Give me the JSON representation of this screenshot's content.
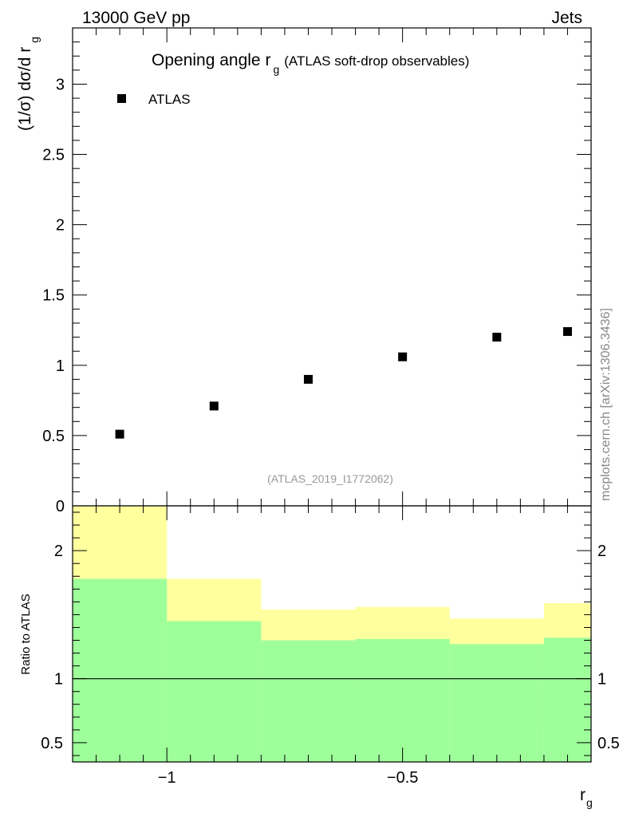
{
  "header": {
    "energy_label": "13000 GeV pp",
    "process_label": "Jets"
  },
  "watermark": "mcplots.cern.ch [arXiv:1306.3436]",
  "chart_data": [
    {
      "type": "scatter",
      "title_main": "Opening angle r",
      "title_sub": "g",
      "title_tail": "(ATLAS soft-drop observables)",
      "ylabel_main": "(1/σ) dσ/d r",
      "ylabel_sub": "g",
      "xlim": [
        -1.2,
        -0.1
      ],
      "ylim": [
        0,
        3.4
      ],
      "yticks": [
        0,
        0.5,
        1,
        1.5,
        2,
        2.5,
        3
      ],
      "ytick_labels": [
        "0",
        "0.5",
        "1",
        "1.5",
        "2",
        "2.5",
        "3"
      ],
      "legend": [
        {
          "name": "ATLAS",
          "marker": "square",
          "color": "#000000"
        }
      ],
      "analysis_label": "(ATLAS_2019_I1772062)",
      "series": [
        {
          "name": "ATLAS",
          "x": [
            -1.1,
            -0.9,
            -0.7,
            -0.5,
            -0.3,
            -0.15
          ],
          "y": [
            0.51,
            0.71,
            0.9,
            1.06,
            1.2,
            1.24
          ]
        }
      ]
    },
    {
      "type": "area",
      "ylabel": "Ratio to ATLAS",
      "xlabel_main": "r",
      "xlabel_sub": "g",
      "xlim": [
        -1.2,
        -0.1
      ],
      "ylim": [
        0.35,
        2.35
      ],
      "xticks": [
        -1,
        -0.5
      ],
      "xtick_labels": [
        "−1",
        "−0.5"
      ],
      "yticks": [
        0.5,
        1,
        2
      ],
      "ytick_labels": [
        "0.5",
        "1",
        "2"
      ],
      "reference_line": 1,
      "bins": [
        {
          "lo": -1.2,
          "hi": -1.0,
          "green": [
            0.35,
            1.78
          ],
          "yellow": [
            0.35,
            2.35
          ]
        },
        {
          "lo": -1.0,
          "hi": -0.8,
          "green": [
            0.35,
            1.45
          ],
          "yellow": [
            0.35,
            1.78
          ]
        },
        {
          "lo": -0.8,
          "hi": -0.6,
          "green": [
            0.35,
            1.3
          ],
          "yellow": [
            0.57,
            1.54
          ]
        },
        {
          "lo": -0.6,
          "hi": -0.4,
          "green": [
            0.35,
            1.31
          ],
          "yellow": [
            0.55,
            1.56
          ]
        },
        {
          "lo": -0.4,
          "hi": -0.2,
          "green": [
            0.35,
            1.27
          ],
          "yellow": [
            0.65,
            1.47
          ]
        },
        {
          "lo": -0.2,
          "hi": -0.1,
          "green": [
            0.35,
            1.32
          ],
          "yellow": [
            0.51,
            1.59
          ]
        }
      ]
    }
  ],
  "colors": {
    "green": "#9eff9a",
    "yellow": "#ffff9e",
    "marker": "#000000",
    "frame": "#000000",
    "analysis_label": "#999999",
    "watermark": "#888888"
  }
}
